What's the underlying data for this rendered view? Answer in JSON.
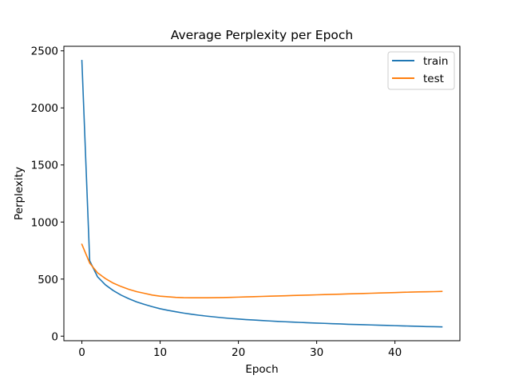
{
  "chart_data": {
    "type": "line",
    "title": "Average Perplexity per Epoch",
    "xlabel": "Epoch",
    "ylabel": "Perplexity",
    "xlim": [
      -2.3,
      48.3
    ],
    "ylim": [
      -40,
      2540
    ],
    "xticks": [
      0,
      10,
      20,
      30,
      40
    ],
    "yticks": [
      0,
      500,
      1000,
      1500,
      2000,
      2500
    ],
    "legend_position": "top-right",
    "grid": false,
    "x": [
      0,
      1,
      2,
      3,
      4,
      5,
      6,
      7,
      8,
      9,
      10,
      11,
      12,
      13,
      14,
      15,
      16,
      17,
      18,
      19,
      20,
      21,
      22,
      23,
      24,
      25,
      26,
      27,
      28,
      29,
      30,
      31,
      32,
      33,
      34,
      35,
      36,
      37,
      38,
      39,
      40,
      41,
      42,
      43,
      44,
      45,
      46
    ],
    "series": [
      {
        "name": "train",
        "color": "#1f77b4",
        "values": [
          2415,
          660,
          520,
          450,
          400,
          360,
          328,
          300,
          278,
          258,
          240,
          226,
          214,
          202,
          192,
          183,
          175,
          168,
          161,
          155,
          150,
          145,
          141,
          137,
          133,
          129,
          126,
          123,
          120,
          117,
          114,
          112,
          109,
          107,
          104,
          102,
          100,
          98,
          96,
          94,
          92,
          90,
          88,
          86,
          84,
          83,
          81
        ]
      },
      {
        "name": "test",
        "color": "#ff7f0e",
        "values": [
          805,
          640,
          555,
          505,
          465,
          435,
          410,
          390,
          375,
          360,
          350,
          345,
          340,
          337,
          336,
          336,
          336,
          337,
          338,
          340,
          342,
          344,
          346,
          348,
          350,
          352,
          354,
          356,
          358,
          360,
          362,
          364,
          366,
          368,
          370,
          372,
          374,
          376,
          378,
          380,
          382,
          384,
          386,
          388,
          389,
          390,
          392
        ]
      }
    ]
  }
}
